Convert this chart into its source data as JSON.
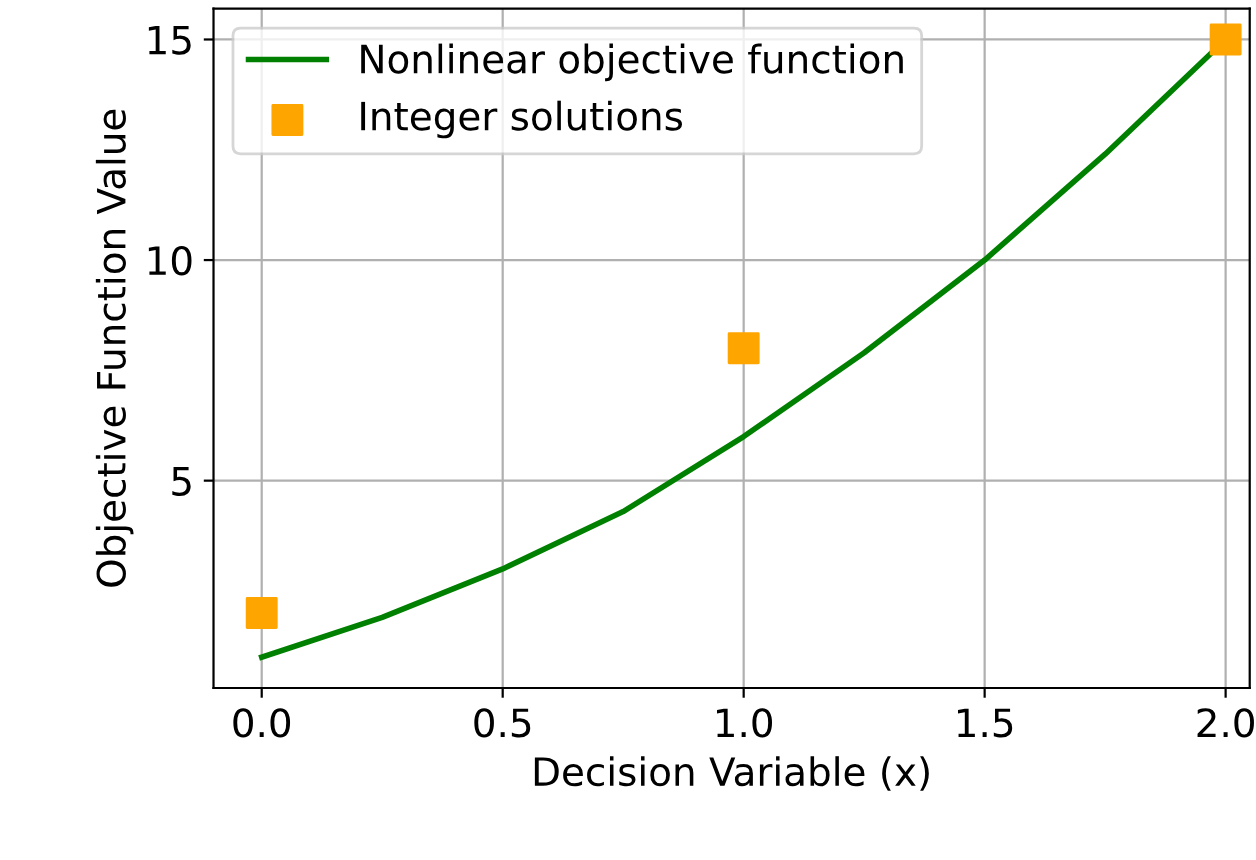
{
  "chart_data": {
    "type": "line",
    "xlabel": "Decision Variable (x)",
    "ylabel": "Objective Function Value",
    "series": [
      {
        "name": "Nonlinear objective function",
        "color": "#008000",
        "x": [
          0,
          0.25,
          0.5,
          0.75,
          1,
          1.25,
          1.5,
          1.75,
          2
        ],
        "values": [
          1,
          1.9,
          3,
          4.3,
          6,
          7.9,
          10,
          12.4,
          15
        ]
      },
      {
        "name": "Integer solutions",
        "type": "scatter",
        "color": "#ffa500",
        "marker": "square",
        "x": [
          0,
          1,
          2
        ],
        "values": [
          2,
          8,
          15
        ]
      }
    ],
    "xlim": [
      -0.1,
      2.05
    ],
    "ylim": [
      0.3,
      15.7
    ],
    "xticks": [
      {
        "value": 0,
        "label": "0.0"
      },
      0.5,
      {
        "value": 1,
        "label": "1.0"
      },
      1.5,
      {
        "value": 2,
        "label": "2.0"
      }
    ],
    "yticks": [
      5,
      10,
      15
    ],
    "grid": true,
    "legend": "top left"
  }
}
